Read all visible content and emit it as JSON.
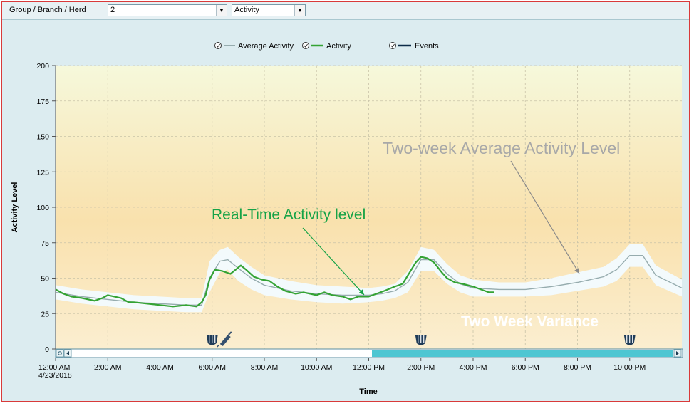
{
  "toolbar": {
    "group_label": "Group / Branch / Herd",
    "group_value": "2",
    "metric_value": "Activity"
  },
  "legend": [
    {
      "label": "Average Activity",
      "color": "#96acae"
    },
    {
      "label": "Activity",
      "color": "#34a334"
    },
    {
      "label": "Events",
      "color": "#0c2b48"
    }
  ],
  "annotations": {
    "avg": "Two-week Average Activity Level",
    "realtime": "Real-Time Activity level",
    "variance": "Two Week Variance"
  },
  "colors": {
    "activity": "#34a334",
    "average": "#96acae",
    "band": "#f2fbff",
    "scroll_fill": "#4ec6d2"
  },
  "chart_data": {
    "type": "line",
    "title": "",
    "xlabel": "Time",
    "ylabel": "Activity Level",
    "ylim": [
      0,
      200
    ],
    "xlim_hours": [
      0,
      24
    ],
    "date_label": "4/23/2018",
    "y_ticks": [
      0,
      25,
      50,
      75,
      100,
      125,
      150,
      175,
      200
    ],
    "x_tick_hours": [
      0,
      2,
      4,
      6,
      8,
      10,
      12,
      14,
      16,
      18,
      20,
      22
    ],
    "x_tick_labels": [
      "12:00 AM",
      "2:00 AM",
      "4:00 AM",
      "6:00 AM",
      "8:00 AM",
      "10:00 AM",
      "12:00 PM",
      "2:00 PM",
      "4:00 PM",
      "6:00 PM",
      "8:00 PM",
      "10:00 PM"
    ],
    "series": [
      {
        "name": "Average Activity",
        "x": [
          0,
          1,
          2,
          3,
          4,
          5,
          5.6,
          5.9,
          6.3,
          6.6,
          7,
          7.5,
          8,
          9,
          10,
          11,
          12,
          12.5,
          13,
          13.5,
          14,
          14.5,
          15,
          15.5,
          16,
          17,
          18,
          19,
          20,
          21,
          21.5,
          22,
          22.5,
          23,
          24
        ],
        "y": [
          40,
          37,
          35,
          33,
          32,
          31,
          31,
          50,
          62,
          63,
          57,
          50,
          45,
          41,
          39,
          38,
          38,
          39,
          41,
          47,
          63,
          63,
          53,
          46,
          43,
          42,
          42,
          44,
          47,
          51,
          56,
          66,
          66,
          52,
          43
        ]
      },
      {
        "name": "Two Week Variance",
        "x": [
          0,
          1,
          2,
          3,
          4,
          5,
          5.6,
          5.9,
          6.3,
          6.6,
          7,
          7.5,
          8,
          9,
          10,
          11,
          12,
          12.5,
          13,
          13.5,
          14,
          14.5,
          15,
          15.5,
          16,
          17,
          18,
          19,
          20,
          21,
          21.5,
          22,
          22.5,
          23,
          24
        ],
        "lower": [
          35,
          32,
          30,
          28,
          27,
          26,
          26,
          40,
          54,
          56,
          48,
          42,
          38,
          35,
          33,
          32,
          33,
          34,
          36,
          40,
          55,
          55,
          46,
          40,
          37,
          37,
          37,
          38,
          41,
          44,
          48,
          58,
          58,
          45,
          37
        ],
        "upper": [
          45,
          42,
          40,
          38,
          37,
          36,
          36,
          62,
          70,
          72,
          65,
          58,
          52,
          48,
          45,
          44,
          43,
          44,
          46,
          55,
          72,
          70,
          60,
          52,
          49,
          47,
          47,
          50,
          54,
          58,
          64,
          74,
          74,
          59,
          49
        ]
      },
      {
        "name": "Activity",
        "x": [
          0,
          0.3,
          0.6,
          1,
          1.5,
          1.8,
          2,
          2.5,
          2.8,
          3,
          3.5,
          4,
          4.5,
          5,
          5.4,
          5.6,
          5.75,
          5.9,
          6.1,
          6.4,
          6.7,
          6.9,
          7.1,
          7.3,
          7.6,
          7.9,
          8.2,
          8.5,
          8.8,
          9.2,
          9.5,
          10,
          10.3,
          10.6,
          11,
          11.3,
          11.6,
          12,
          12.3,
          12.6,
          13,
          13.3,
          13.6,
          13.8,
          14,
          14.25,
          14.5,
          14.8,
          15,
          15.3,
          15.6,
          16,
          16.3,
          16.6,
          16.8
        ],
        "y": [
          42,
          39,
          37,
          36,
          34,
          36,
          38,
          36,
          33,
          33,
          32,
          31,
          30,
          31,
          30,
          33,
          38,
          49,
          56,
          55,
          53,
          56,
          59,
          56,
          51,
          49,
          48,
          44,
          41,
          39,
          40,
          38,
          40,
          38,
          37,
          35,
          37,
          37,
          39,
          41,
          44,
          46,
          55,
          61,
          65,
          64,
          61,
          54,
          50,
          47,
          46,
          44,
          42,
          40,
          40
        ]
      },
      {
        "name": "Events",
        "x": [
          6.0,
          14.0,
          22.0
        ]
      }
    ],
    "grid": true,
    "legend_position": "top-center"
  }
}
